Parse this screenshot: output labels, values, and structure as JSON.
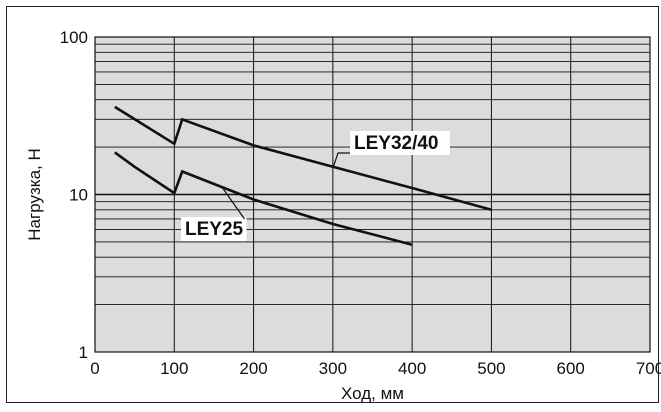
{
  "chart_data": {
    "type": "line",
    "title": "",
    "xlabel": "Ход, мм",
    "ylabel": "Нагрузка, Н",
    "xlim": [
      0,
      700
    ],
    "ylim": [
      1,
      100
    ],
    "yscale": "log",
    "x_ticks": [
      0,
      100,
      200,
      300,
      400,
      500,
      600,
      700
    ],
    "y_tick_labels": [
      "1",
      "10",
      "100"
    ],
    "grid": true,
    "legend": "none",
    "series": [
      {
        "name": "LEY32/40",
        "x": [
          25,
          100,
          110,
          200,
          300,
          400,
          500
        ],
        "y": [
          36,
          21,
          30,
          20.5,
          15,
          11,
          8
        ]
      },
      {
        "name": "LEY25",
        "x": [
          25,
          50,
          100,
          110,
          200,
          300,
          400
        ],
        "y": [
          18.5,
          15,
          10.2,
          14,
          9.3,
          6.5,
          4.8
        ]
      }
    ],
    "colors": {
      "background": "#dcdcdc",
      "line": "#111111"
    }
  }
}
